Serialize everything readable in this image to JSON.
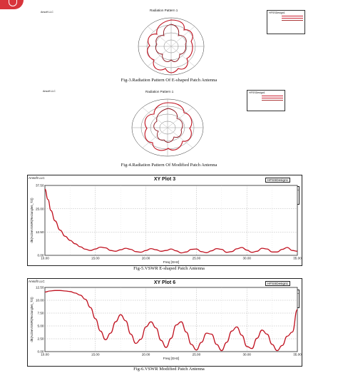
{
  "fig3": {
    "company": "Ansoft LLC",
    "title": "Radiation Pattern 1",
    "design": "HFSSDesign1",
    "caption": "Fig-3.Radiation Pattern Of E-shaped Patch Antenna"
  },
  "fig4": {
    "company": "Ansoft LLC",
    "title": "Radiation Pattern 1",
    "design": "HFSSDesign1",
    "caption": "Fig-4.Radiation Pattern Of Modified Patch Antenna"
  },
  "fig5": {
    "company": "Ansoft LLC",
    "title": "XY Plot 3",
    "design": "HFSSDesign1",
    "curve_info_title": "Curve Info",
    "curve_name": "dB(ActiveVSWR(Rectangle6_T2))",
    "setup": "Setup1 : Sweep1",
    "ylabel": "dB(ActiveVSWR(Rectangle6_T2))",
    "xlabel": "Freq [GHz]",
    "caption": "Fig-5.VSWR E-shaped Patch Antenna"
  },
  "fig6": {
    "company": "Ansoft LLC",
    "title": "XY Plot 6",
    "design": "HFSSDesign1",
    "curve_info_title": "Curve Info",
    "curve_name": "dB(ActiveVSWR(Rectangle6_T2))",
    "setup": "Setup1 : Sweep1",
    "ylabel": "dB(ActiveVSWR(Rectangle6_T2))",
    "xlabel": "Freq [GHz]",
    "caption": "Fig-6.VSWR Modified Patch Antenna"
  },
  "chart_data": [
    {
      "type": "line",
      "title": "XY Plot 3",
      "xlabel": "Freq [GHz]",
      "ylabel": "dB(ActiveVSWR(Rectangle6_T2))",
      "xlim": [
        10,
        35
      ],
      "ylim": [
        0,
        37.5
      ],
      "x_ticks": [
        "10.00",
        "15.00",
        "20.00",
        "25.00",
        "30.00",
        "35.00"
      ],
      "y_ticks": [
        "0.00",
        "12.50",
        "25.00",
        "37.50"
      ],
      "grid": true,
      "legend": "top-right",
      "series": [
        {
          "name": "dB(ActiveVSWR(Rectangle6_T2))",
          "color": "#c0111f",
          "x": [
            10.0,
            10.3,
            10.6,
            11.0,
            11.5,
            12.0,
            12.5,
            13.0,
            13.5,
            14.0,
            14.5,
            15.0,
            15.5,
            16.0,
            16.5,
            17.0,
            17.5,
            18.0,
            18.5,
            19.0,
            19.5,
            20.0,
            20.5,
            21.0,
            21.5,
            22.0,
            22.5,
            23.0,
            23.5,
            24.0,
            24.5,
            25.0,
            25.5,
            26.0,
            26.5,
            27.0,
            27.5,
            28.0,
            28.5,
            29.0,
            29.5,
            30.0,
            30.5,
            31.0,
            31.5,
            32.0,
            32.5,
            33.0,
            33.5,
            34.0,
            34.5,
            35.0
          ],
          "y": [
            35.5,
            30.0,
            24.0,
            18.5,
            13.5,
            10.2,
            8.0,
            6.2,
            4.6,
            3.3,
            2.6,
            3.4,
            4.4,
            4.0,
            2.6,
            2.2,
            3.0,
            3.8,
            3.2,
            2.0,
            1.7,
            2.6,
            3.6,
            3.0,
            2.2,
            2.6,
            3.4,
            2.4,
            1.3,
            1.8,
            3.2,
            3.4,
            2.0,
            1.4,
            2.4,
            3.6,
            3.2,
            1.6,
            2.0,
            3.5,
            4.2,
            2.8,
            1.6,
            2.2,
            3.8,
            3.4,
            1.8,
            1.8,
            3.2,
            4.2,
            2.6,
            2.2
          ]
        }
      ]
    },
    {
      "type": "line",
      "title": "XY Plot 6",
      "xlabel": "Freq [GHz]",
      "ylabel": "dB(ActiveVSWR(Rectangle6_T2))",
      "xlim": [
        10,
        35
      ],
      "ylim": [
        0,
        12.5
      ],
      "x_ticks": [
        "10.00",
        "15.00",
        "20.00",
        "25.00",
        "30.00",
        "35.00"
      ],
      "y_ticks": [
        "0.00",
        "2.50",
        "5.00",
        "7.50",
        "10.00",
        "12.50"
      ],
      "grid": true,
      "legend": "top-right",
      "series": [
        {
          "name": "dB(ActiveVSWR(Rectangle6_T2))",
          "color": "#c0111f",
          "x": [
            10.0,
            10.5,
            11.0,
            11.5,
            12.0,
            12.5,
            13.0,
            13.5,
            14.0,
            14.5,
            15.0,
            15.5,
            16.0,
            16.5,
            17.0,
            17.5,
            18.0,
            18.5,
            19.0,
            19.5,
            20.0,
            20.5,
            21.0,
            21.5,
            22.0,
            22.5,
            23.0,
            23.5,
            24.0,
            24.5,
            25.0,
            25.5,
            26.0,
            26.5,
            27.0,
            27.5,
            28.0,
            28.5,
            29.0,
            29.5,
            30.0,
            30.5,
            31.0,
            31.5,
            32.0,
            32.5,
            33.0,
            33.5,
            34.0,
            34.5,
            35.0
          ],
          "y": [
            11.6,
            11.8,
            11.9,
            11.9,
            11.8,
            11.7,
            11.4,
            11.0,
            10.2,
            8.6,
            6.4,
            4.0,
            2.3,
            3.6,
            5.8,
            7.2,
            6.0,
            3.4,
            1.6,
            2.4,
            4.8,
            5.8,
            4.6,
            2.2,
            0.8,
            2.6,
            5.2,
            5.8,
            3.8,
            1.4,
            0.3,
            1.8,
            3.6,
            3.4,
            1.4,
            0.2,
            1.8,
            4.0,
            4.8,
            3.2,
            1.0,
            0.6,
            2.6,
            4.2,
            3.4,
            1.4,
            0.2,
            1.2,
            3.0,
            3.8,
            8.2
          ]
        }
      ]
    }
  ]
}
